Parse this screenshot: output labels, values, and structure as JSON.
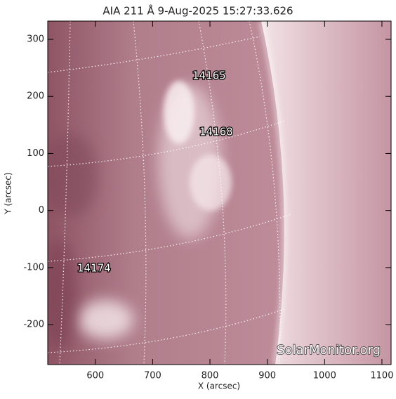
{
  "chart_data": {
    "type": "image",
    "title": "AIA 211 Å  9-Aug-2025 15:27:33.626",
    "x_label": "X (arcsec)",
    "y_label": "Y (arcsec)",
    "xlim": [
      517,
      1116
    ],
    "ylim": [
      -270,
      332
    ],
    "xticks": [
      600,
      700,
      800,
      900,
      1000,
      1100
    ],
    "yticks": [
      -200,
      -100,
      0,
      100,
      200,
      300
    ],
    "annotations": [
      "14165",
      "14168",
      "14174"
    ],
    "watermark": "SolarMonitor.org"
  }
}
